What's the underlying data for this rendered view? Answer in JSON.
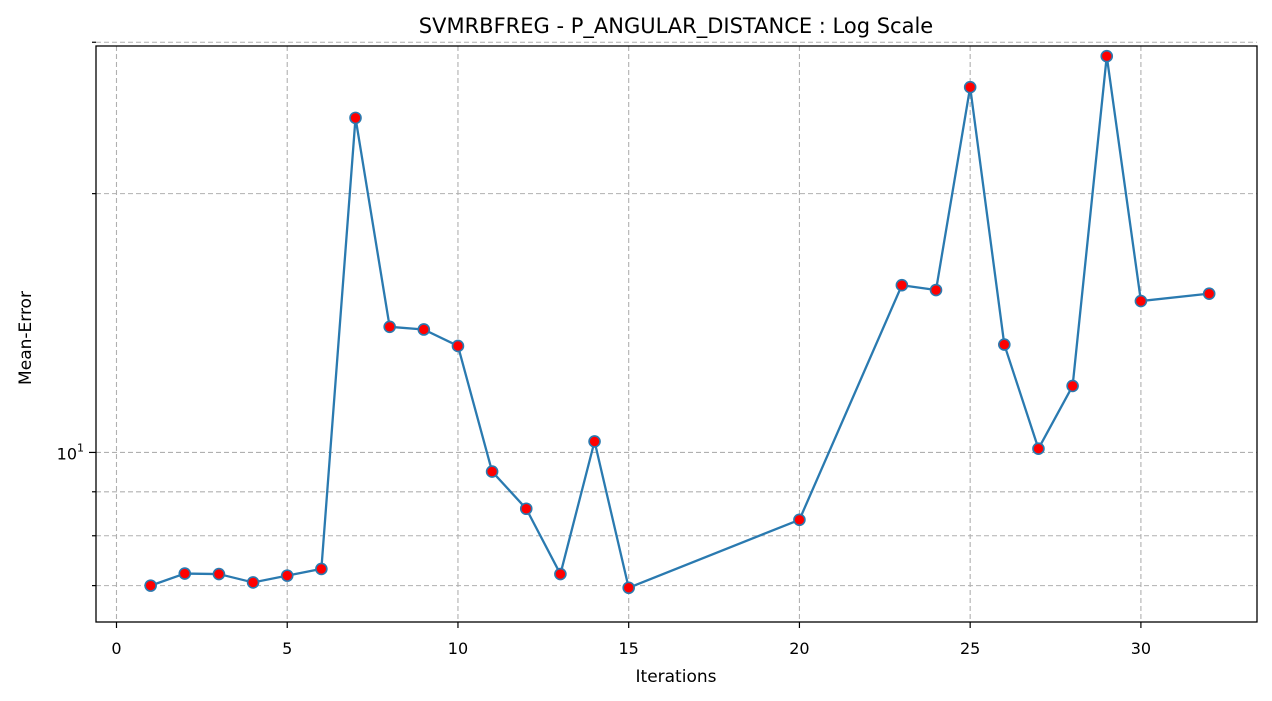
{
  "chart_data": {
    "type": "line",
    "title": "SVMRBFREG - P_ANGULAR_DISTANCE : Log Scale",
    "xlabel": "Iterations",
    "ylabel": "Mean-Error",
    "yscale": "log",
    "grid": true,
    "xlim": [
      -0.6,
      33.4
    ],
    "ylim": [
      6.35,
      29.7
    ],
    "xticks": [
      0,
      5,
      10,
      15,
      20,
      25,
      30
    ],
    "ytick_labels": [
      {
        "value": 10,
        "base": "10",
        "exp": "1"
      }
    ],
    "yminor_ticks": [
      7,
      8,
      9,
      20,
      30
    ],
    "series": [
      {
        "line_color": "#2a7ab0",
        "marker_color": "#ff0000",
        "x": [
          1,
          2,
          3,
          4,
          5,
          6,
          7,
          8,
          9,
          10,
          11,
          12,
          13,
          14,
          15,
          20,
          23,
          24,
          25,
          26,
          27,
          28,
          29,
          30,
          32
        ],
        "y": [
          7.0,
          7.23,
          7.22,
          7.06,
          7.19,
          7.32,
          24.5,
          14.0,
          13.9,
          13.3,
          9.5,
          8.6,
          7.22,
          10.3,
          6.96,
          8.35,
          15.65,
          15.45,
          26.6,
          13.35,
          10.1,
          11.95,
          28.9,
          15.0,
          15.3
        ]
      }
    ]
  }
}
